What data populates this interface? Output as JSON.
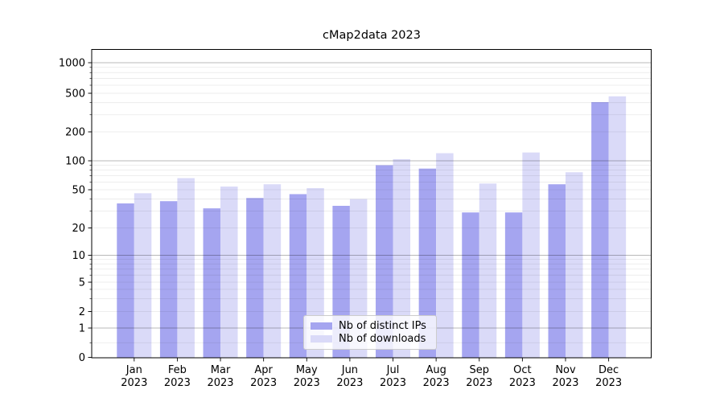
{
  "chart_data": {
    "type": "bar",
    "title": "cMap2data 2023",
    "categories": [
      "Jan",
      "Feb",
      "Mar",
      "Apr",
      "May",
      "Jun",
      "Jul",
      "Aug",
      "Sep",
      "Oct",
      "Nov",
      "Dec"
    ],
    "category_year": "2023",
    "series": [
      {
        "name": "Nb of distinct IPs",
        "color": "#a5a5f0",
        "values": [
          36,
          38,
          32,
          41,
          45,
          34,
          90,
          83,
          29,
          29,
          57,
          405
        ]
      },
      {
        "name": "Nb of downloads",
        "color": "#dadaf8",
        "values": [
          46,
          66,
          54,
          57,
          52,
          40,
          104,
          120,
          58,
          122,
          76,
          465
        ]
      }
    ],
    "yscale": "symlog",
    "ylim": [
      0,
      1400
    ],
    "yticks": [
      0,
      1,
      2,
      5,
      10,
      20,
      50,
      100,
      200,
      500,
      1000
    ],
    "grid": true,
    "legend_position": "lower center"
  }
}
